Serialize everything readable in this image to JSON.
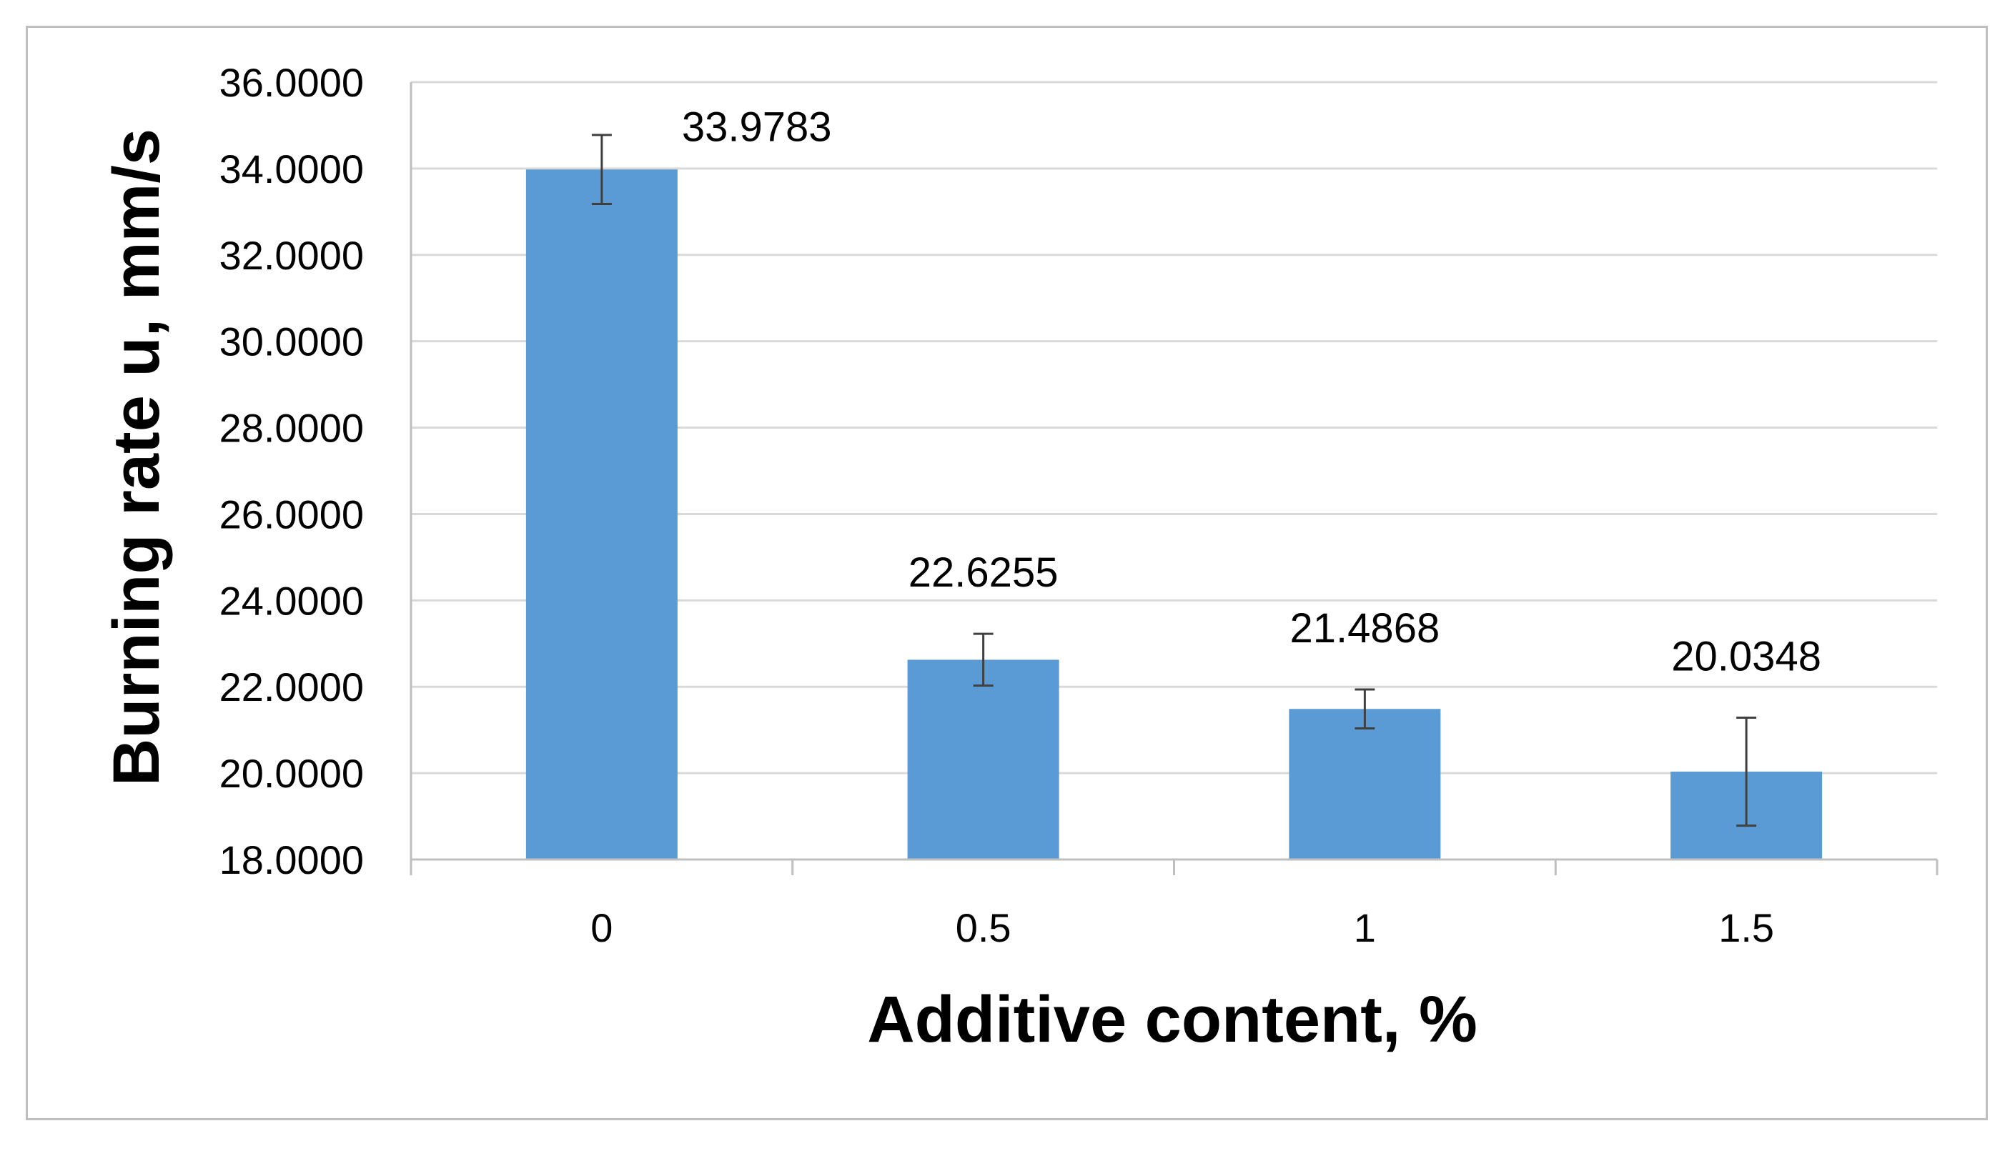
{
  "chart_data": {
    "type": "bar",
    "title": "",
    "xlabel": "Additive content, %",
    "ylabel": "Burning rate u, mm/s",
    "categories": [
      "0",
      "0.5",
      "1",
      "1.5"
    ],
    "series": [
      {
        "values": [
          33.9783,
          22.6255,
          21.4868,
          20.0348
        ],
        "data_labels": [
          "33.9783",
          "22.6255",
          "21.4868",
          "20.0348"
        ],
        "error": [
          0.8,
          0.6,
          0.45,
          1.25
        ],
        "color": "#5b9bd5"
      }
    ],
    "ylim": [
      18,
      36
    ],
    "yticks": [
      18,
      20,
      22,
      24,
      26,
      28,
      30,
      32,
      34,
      36
    ],
    "ytick_labels": [
      "18.0000",
      "20.0000",
      "22.0000",
      "24.0000",
      "26.0000",
      "28.0000",
      "30.0000",
      "32.0000",
      "34.0000",
      "36.0000"
    ],
    "grid": true,
    "legend": "none",
    "gridline_color": "#d9d9d9",
    "axis_color": "#bfbfbf"
  }
}
